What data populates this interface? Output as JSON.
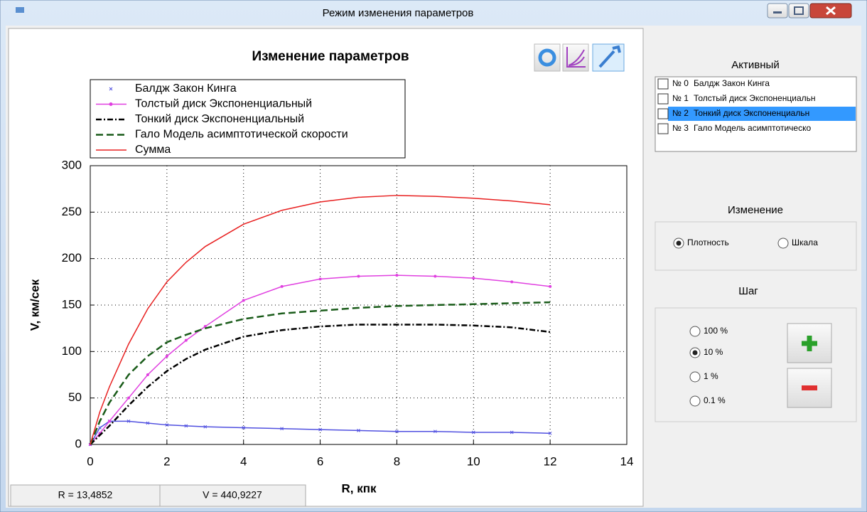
{
  "window": {
    "title": "Режим изменения параметров"
  },
  "chart_data": {
    "type": "line",
    "title": "Изменение параметров",
    "x_label": "R, кпк",
    "y_label": "V, км/сек",
    "xlim": [
      0,
      14
    ],
    "ylim": [
      0,
      300
    ],
    "xticks": [
      0,
      2,
      4,
      6,
      8,
      10,
      12,
      14
    ],
    "yticks": [
      0,
      50,
      100,
      150,
      200,
      250,
      300
    ],
    "grid": true,
    "legend": "top-left",
    "x": [
      0,
      0.25,
      0.5,
      1,
      1.5,
      2,
      2.5,
      3,
      4,
      5,
      6,
      7,
      8,
      9,
      10,
      11,
      12
    ],
    "series": [
      {
        "name": "Балдж  Закон Кинга",
        "color": "#5050e0",
        "line_style": "solid",
        "marker": "x",
        "values": [
          0,
          18,
          25,
          25,
          23,
          21,
          20,
          19,
          18,
          17,
          16,
          15,
          14,
          14,
          13,
          13,
          12
        ]
      },
      {
        "name": "Толстый диск  Экспоненциальный",
        "color": "#e040e0",
        "line_style": "solid",
        "marker": "dot",
        "values": [
          0,
          12,
          25,
          50,
          75,
          95,
          112,
          127,
          155,
          170,
          178,
          181,
          182,
          181,
          179,
          175,
          170
        ]
      },
      {
        "name": "Тонкий диск  Экспоненциальный",
        "color": "#000000",
        "line_style": "dashdot",
        "marker": "none",
        "values": [
          0,
          10,
          20,
          42,
          62,
          79,
          92,
          102,
          116,
          123,
          127,
          129,
          129,
          129,
          128,
          126,
          121
        ]
      },
      {
        "name": "Гало  Модель асимптотической скорости",
        "color": "#1a5c1a",
        "line_style": "dashed",
        "marker": "none",
        "values": [
          0,
          25,
          45,
          75,
          95,
          110,
          118,
          125,
          135,
          141,
          144,
          147,
          149,
          150,
          151,
          152,
          153
        ]
      },
      {
        "name": "Сумма",
        "color": "#e82020",
        "line_style": "solid",
        "marker": "none",
        "values": [
          0,
          35,
          62,
          108,
          146,
          175,
          196,
          213,
          237,
          252,
          261,
          266,
          268,
          267,
          265,
          262,
          258
        ]
      }
    ]
  },
  "status": {
    "r": "R = 13,4852",
    "v": "V = 440,9227"
  },
  "active_panel": {
    "title": "Активный",
    "selected": 2,
    "items": [
      {
        "number": "№ 0",
        "name": "Балдж  Закон Кинга"
      },
      {
        "number": "№ 1",
        "name": "Толстый диск  Экспоненциальн"
      },
      {
        "number": "№ 2",
        "name": "Тонкий диск  Экспоненциальн"
      },
      {
        "number": "№ 3",
        "name": "Гало  Модель асимптотическо"
      }
    ]
  },
  "change_panel": {
    "title": "Изменение",
    "selected": 0,
    "options": [
      "Плотность",
      "Шкала"
    ]
  },
  "step_panel": {
    "title": "Шаг",
    "selected": 1,
    "options": [
      "100 %",
      "10 %",
      "1 %",
      "0.1 %"
    ]
  }
}
